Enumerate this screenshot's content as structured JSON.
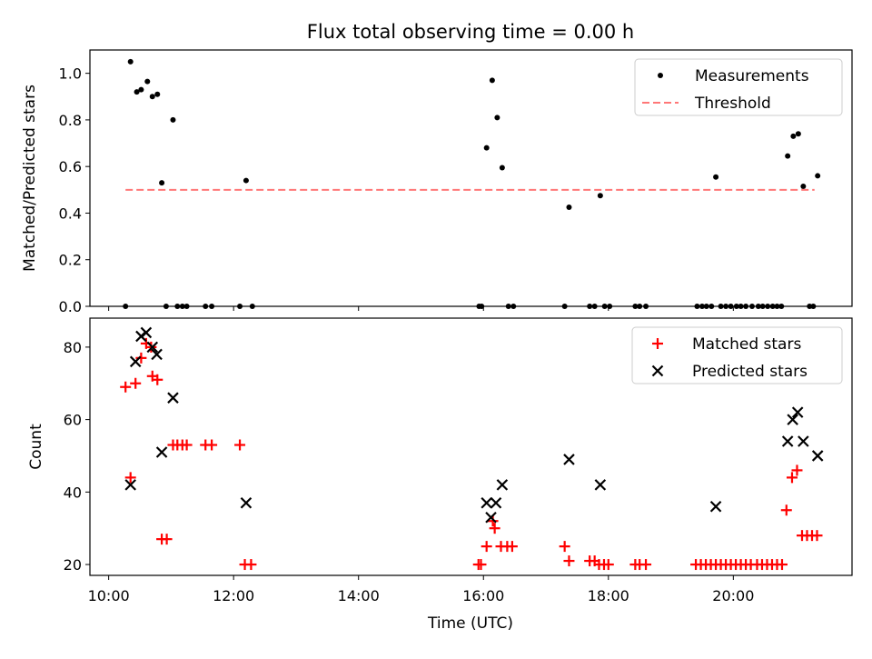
{
  "chart_data": {
    "title": "Flux total observing time = 0.00 h",
    "x_ticks": [
      "10:00",
      "12:00",
      "14:00",
      "16:00",
      "18:00",
      "20:00"
    ],
    "x_tick_values_h": [
      10,
      12,
      14,
      16,
      18,
      20
    ],
    "xlabel": "Time (UTC)",
    "xlim_h": [
      9.7,
      21.9
    ],
    "panels": [
      {
        "type": "scatter",
        "ylabel": "Matched/Predicted stars",
        "ylim": [
          0,
          1.1
        ],
        "y_ticks": [
          "0.0",
          "0.2",
          "0.4",
          "0.6",
          "0.8",
          "1.0"
        ],
        "y_tick_values": [
          0,
          0.2,
          0.4,
          0.6,
          0.8,
          1.0
        ],
        "legend": {
          "position": "top-right",
          "items": [
            "Measurements",
            "Threshold"
          ]
        },
        "series": [
          {
            "name": "Measurements",
            "marker": "dot",
            "color": "#000000",
            "points": [
              [
                10.27,
                0
              ],
              [
                10.35,
                1.05
              ],
              [
                10.45,
                0.92
              ],
              [
                10.52,
                0.93
              ],
              [
                10.62,
                0.965
              ],
              [
                10.7,
                0.9
              ],
              [
                10.78,
                0.91
              ],
              [
                10.85,
                0.53
              ],
              [
                10.92,
                0
              ],
              [
                11.03,
                0.8
              ],
              [
                11.1,
                0
              ],
              [
                11.18,
                0
              ],
              [
                11.25,
                0
              ],
              [
                11.55,
                0
              ],
              [
                11.65,
                0
              ],
              [
                12.1,
                0
              ],
              [
                12.2,
                0.54
              ],
              [
                12.3,
                0
              ],
              [
                15.93,
                0
              ],
              [
                15.97,
                0
              ],
              [
                16.05,
                0.68
              ],
              [
                16.14,
                0.97
              ],
              [
                16.22,
                0.81
              ],
              [
                16.3,
                0.595
              ],
              [
                16.4,
                0
              ],
              [
                16.48,
                0
              ],
              [
                17.3,
                0
              ],
              [
                17.37,
                0.425
              ],
              [
                17.7,
                0
              ],
              [
                17.78,
                0
              ],
              [
                17.87,
                0.475
              ],
              [
                17.94,
                0
              ],
              [
                18.02,
                0
              ],
              [
                18.43,
                0
              ],
              [
                18.5,
                0
              ],
              [
                18.6,
                0
              ],
              [
                19.42,
                0
              ],
              [
                19.5,
                0
              ],
              [
                19.57,
                0
              ],
              [
                19.65,
                0
              ],
              [
                19.72,
                0.555
              ],
              [
                19.8,
                0
              ],
              [
                19.88,
                0
              ],
              [
                19.96,
                0
              ],
              [
                20.05,
                0
              ],
              [
                20.12,
                0
              ],
              [
                20.2,
                0
              ],
              [
                20.3,
                0
              ],
              [
                20.4,
                0
              ],
              [
                20.47,
                0
              ],
              [
                20.55,
                0
              ],
              [
                20.63,
                0
              ],
              [
                20.7,
                0
              ],
              [
                20.77,
                0
              ],
              [
                20.87,
                0.645
              ],
              [
                20.96,
                0.73
              ],
              [
                21.04,
                0.74
              ],
              [
                21.12,
                0.515
              ],
              [
                21.22,
                0
              ],
              [
                21.28,
                0
              ],
              [
                21.35,
                0.56
              ]
            ]
          },
          {
            "name": "Threshold",
            "type": "line",
            "style": "dashed",
            "color": "#ff7777",
            "points": [
              [
                10.27,
                0.5
              ],
              [
                21.3,
                0.5
              ]
            ]
          }
        ]
      },
      {
        "type": "scatter",
        "ylabel": "Count",
        "ylim": [
          17,
          88
        ],
        "y_ticks": [
          "20",
          "40",
          "60",
          "80"
        ],
        "y_tick_values": [
          20,
          40,
          60,
          80
        ],
        "legend": {
          "position": "top-right",
          "items": [
            "Matched stars",
            "Predicted stars"
          ]
        },
        "series": [
          {
            "name": "Matched stars",
            "marker": "plus",
            "color": "#ff0000",
            "points": [
              [
                10.27,
                69
              ],
              [
                10.35,
                44
              ],
              [
                10.43,
                70
              ],
              [
                10.52,
                77
              ],
              [
                10.6,
                81
              ],
              [
                10.68,
                80
              ],
              [
                10.7,
                72
              ],
              [
                10.78,
                71
              ],
              [
                10.85,
                27
              ],
              [
                10.93,
                27
              ],
              [
                11.03,
                53
              ],
              [
                11.1,
                53
              ],
              [
                11.18,
                53
              ],
              [
                11.25,
                53
              ],
              [
                11.55,
                53
              ],
              [
                11.65,
                53
              ],
              [
                12.1,
                53
              ],
              [
                12.18,
                20
              ],
              [
                12.28,
                20
              ],
              [
                15.92,
                20
              ],
              [
                15.96,
                20
              ],
              [
                16.05,
                25
              ],
              [
                16.15,
                32
              ],
              [
                16.18,
                30
              ],
              [
                16.28,
                25
              ],
              [
                16.38,
                25
              ],
              [
                16.46,
                25
              ],
              [
                17.3,
                25
              ],
              [
                17.37,
                21
              ],
              [
                17.7,
                21
              ],
              [
                17.78,
                21
              ],
              [
                17.85,
                20
              ],
              [
                17.93,
                20
              ],
              [
                18.0,
                20
              ],
              [
                18.43,
                20
              ],
              [
                18.5,
                20
              ],
              [
                18.6,
                20
              ],
              [
                19.4,
                20
              ],
              [
                19.48,
                20
              ],
              [
                19.56,
                20
              ],
              [
                19.64,
                20
              ],
              [
                19.72,
                20
              ],
              [
                19.8,
                20
              ],
              [
                19.88,
                20
              ],
              [
                19.96,
                20
              ],
              [
                20.04,
                20
              ],
              [
                20.12,
                20
              ],
              [
                20.2,
                20
              ],
              [
                20.28,
                20
              ],
              [
                20.38,
                20
              ],
              [
                20.46,
                20
              ],
              [
                20.54,
                20
              ],
              [
                20.62,
                20
              ],
              [
                20.7,
                20
              ],
              [
                20.78,
                20
              ],
              [
                20.85,
                35
              ],
              [
                20.94,
                44
              ],
              [
                21.02,
                46
              ],
              [
                21.1,
                28
              ],
              [
                21.18,
                28
              ],
              [
                21.26,
                28
              ],
              [
                21.34,
                28
              ]
            ]
          },
          {
            "name": "Predicted stars",
            "marker": "x",
            "color": "#000000",
            "points": [
              [
                10.35,
                42
              ],
              [
                10.43,
                76
              ],
              [
                10.52,
                83
              ],
              [
                10.6,
                84
              ],
              [
                10.7,
                80
              ],
              [
                10.77,
                78
              ],
              [
                10.85,
                51
              ],
              [
                11.03,
                66
              ],
              [
                12.2,
                37
              ],
              [
                16.05,
                37
              ],
              [
                16.12,
                33
              ],
              [
                16.2,
                37
              ],
              [
                16.3,
                42
              ],
              [
                17.37,
                49
              ],
              [
                17.87,
                42
              ],
              [
                19.72,
                36
              ],
              [
                20.87,
                54
              ],
              [
                20.95,
                60
              ],
              [
                21.03,
                62
              ],
              [
                21.12,
                54
              ],
              [
                21.35,
                50
              ]
            ]
          }
        ]
      }
    ]
  }
}
